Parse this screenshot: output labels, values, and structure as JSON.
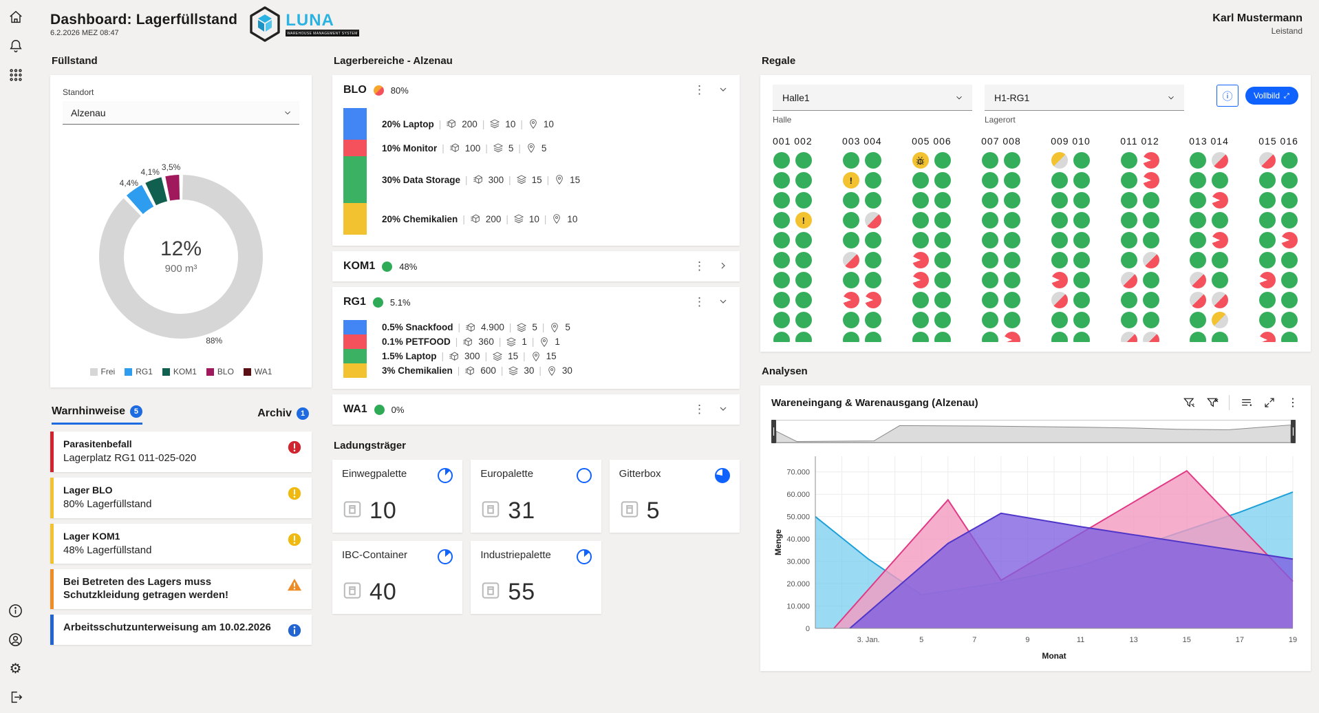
{
  "header": {
    "title": "Dashboard: Lagerfüllstand",
    "datetime": "6.2.2026 MEZ 08:47",
    "logo_text": "LUNA",
    "logo_sub": "WAREHOUSE MANAGEMENT SYSTEM",
    "user_name": "Karl Mustermann",
    "user_role": "Leistand"
  },
  "fuellstand": {
    "title": "Füllstand",
    "standort_label": "Standort",
    "standort_value": "Alzenau",
    "chart_data": {
      "type": "pie",
      "center_value": "12%",
      "center_sub": "900 m³",
      "slices": [
        {
          "label": "Frei",
          "value": 88,
          "display": "88%",
          "color": "#d6d6d6"
        },
        {
          "label": "RG1",
          "value": 4.4,
          "display": "4,4%",
          "color": "#2e9df0"
        },
        {
          "label": "KOM1",
          "value": 4.1,
          "display": "4,1%",
          "color": "#11604f"
        },
        {
          "label": "BLO",
          "value": 3.5,
          "display": "3,5%",
          "color": "#a0195c"
        },
        {
          "label": "WA1",
          "value": 0,
          "display": null,
          "color": "#5a0f14"
        }
      ]
    }
  },
  "warnings": {
    "tab_active_label": "Warnhinweise",
    "tab_active_count": "5",
    "tab_archive_label": "Archiv",
    "tab_archive_count": "1",
    "items": [
      {
        "title": "Parasitenbefall",
        "text": "Lagerplatz RG1 011-025-020",
        "severity": "critical"
      },
      {
        "title": "Lager BLO",
        "text": "80% Lagerfüllstand",
        "severity": "warning"
      },
      {
        "title": "Lager KOM1",
        "text": "48% Lagerfüllstand",
        "severity": "warning"
      },
      {
        "title": "",
        "text": "Bei Betreten des Lagers muss Schutzkleidung getragen werden!",
        "severity": "notice"
      },
      {
        "title": "",
        "text": "Arbeitsschutzunterweisung am 10.02.2026",
        "severity": "info"
      }
    ]
  },
  "lagerbereiche": {
    "title": "Lagerbereiche - Alzenau",
    "sections": [
      {
        "name": "BLO",
        "percent": "80%",
        "status": "split",
        "chevron": "down",
        "expanded": true,
        "rows": [
          {
            "name": "20% Laptop",
            "qty": "200",
            "layers": "10",
            "places": "10",
            "color": "#4285f4",
            "h": 46
          },
          {
            "name": "10% Monitor",
            "qty": "100",
            "layers": "5",
            "places": "5",
            "color": "#f4515c",
            "h": 24
          },
          {
            "name": "30% Data Storage",
            "qty": "300",
            "layers": "15",
            "places": "15",
            "color": "#3bb163",
            "h": 68
          },
          {
            "name": "20% Chemikalien",
            "qty": "200",
            "layers": "10",
            "places": "10",
            "color": "#f2c230",
            "h": 46
          }
        ]
      },
      {
        "name": "KOM1",
        "percent": "48%",
        "status": "green",
        "chevron": "right",
        "expanded": false,
        "rows": []
      },
      {
        "name": "RG1",
        "percent": "5.1%",
        "status": "green",
        "chevron": "down",
        "expanded": true,
        "rows": [
          {
            "name": "0.5% Snackfood",
            "qty": "4.900",
            "layers": "5",
            "places": "5",
            "color": "#4285f4",
            "h": 21
          },
          {
            "name": "0.1% PETFOOD",
            "qty": "360",
            "layers": "1",
            "places": "1",
            "color": "#f4515c",
            "h": 21
          },
          {
            "name": "1.5% Laptop",
            "qty": "300",
            "layers": "15",
            "places": "15",
            "color": "#3bb163",
            "h": 21
          },
          {
            "name": "3% Chemikalien",
            "qty": "600",
            "layers": "30",
            "places": "30",
            "color": "#f2c230",
            "h": 21
          }
        ]
      },
      {
        "name": "WA1",
        "percent": "0%",
        "status": "green",
        "chevron": "down",
        "expanded": false,
        "rows": []
      }
    ]
  },
  "ladungstraeger": {
    "title": "Ladungsträger",
    "cards": [
      {
        "name": "Einwegpalette",
        "count": "10",
        "pie_pct": 12
      },
      {
        "name": "Europalette",
        "count": "31",
        "pie_pct": 0
      },
      {
        "name": "Gitterbox",
        "count": "5",
        "pie_pct": 78
      },
      {
        "name": "IBC-Container",
        "count": "40",
        "pie_pct": 14
      },
      {
        "name": "Industriepalette",
        "count": "55",
        "pie_pct": 14
      }
    ]
  },
  "regale": {
    "title": "Regale",
    "halle_value": "Halle1",
    "halle_label": "Halle",
    "lagerort_value": "H1-RG1",
    "lagerort_label": "Lagerort",
    "fullscreen_label": "Vollbild",
    "groups": [
      {
        "header": "001 002",
        "cols": [
          [
            "G",
            "G",
            "G",
            "G",
            "G",
            "G",
            "G",
            "G",
            "G",
            "G",
            "G"
          ],
          [
            "G",
            "G",
            "G",
            "Y",
            "G",
            "G",
            "G",
            "G",
            "G",
            "G",
            "G"
          ]
        ]
      },
      {
        "header": "003 004",
        "cols": [
          [
            "G",
            "Y",
            "G",
            "G",
            "G",
            "HR",
            "G",
            "RP",
            "G",
            "G",
            "G"
          ],
          [
            "G",
            "G",
            "G",
            "HR",
            "G",
            "G",
            "G",
            "RP",
            "G",
            "G",
            "HR"
          ]
        ]
      },
      {
        "header": "005 006",
        "cols": [
          [
            "B",
            "G",
            "G",
            "G",
            "G",
            "RP",
            "RP",
            "G",
            "G",
            "G",
            "HR"
          ],
          [
            "G",
            "G",
            "G",
            "G",
            "G",
            "G",
            "G",
            "G",
            "G",
            "G",
            "G"
          ]
        ]
      },
      {
        "header": "007 008",
        "cols": [
          [
            "G",
            "G",
            "G",
            "G",
            "G",
            "G",
            "G",
            "G",
            "G",
            "G",
            "G"
          ],
          [
            "G",
            "G",
            "G",
            "G",
            "G",
            "G",
            "G",
            "G",
            "G",
            "RP",
            "G"
          ]
        ]
      },
      {
        "header": "009 010",
        "cols": [
          [
            "YG",
            "G",
            "G",
            "G",
            "G",
            "G",
            "RP",
            "HR",
            "G",
            "G",
            "G"
          ],
          [
            "G",
            "G",
            "G",
            "G",
            "G",
            "G",
            "G",
            "G",
            "G",
            "G",
            "G"
          ]
        ]
      },
      {
        "header": "011 012",
        "cols": [
          [
            "G",
            "G",
            "G",
            "G",
            "G",
            "G",
            "HR",
            "G",
            "G",
            "HR",
            "G"
          ],
          [
            "RP",
            "RP",
            "G",
            "G",
            "G",
            "HR",
            "G",
            "G",
            "G",
            "HR",
            "G"
          ]
        ]
      },
      {
        "header": "013 014",
        "cols": [
          [
            "G",
            "G",
            "G",
            "G",
            "G",
            "G",
            "HR",
            "HR",
            "G",
            "G",
            "G"
          ],
          [
            "HR",
            "G",
            "RP",
            "G",
            "RP",
            "G",
            "G",
            "HR",
            "YG",
            "G",
            "G"
          ]
        ]
      },
      {
        "header": "015 016",
        "cols": [
          [
            "HR",
            "G",
            "G",
            "G",
            "G",
            "G",
            "RP",
            "G",
            "G",
            "RP",
            "G"
          ],
          [
            "G",
            "G",
            "G",
            "G",
            "RP",
            "G",
            "G",
            "G",
            "G",
            "G",
            "G"
          ]
        ]
      }
    ]
  },
  "analysen": {
    "title": "Analysen",
    "chart_title": "Wareneingang & Warenausgang (Alzenau)",
    "chart_data": {
      "type": "area",
      "xlabel": "Monat",
      "ylabel": "Menge",
      "x_range": [
        1,
        19
      ],
      "y_max": 77000,
      "y_ticks": [
        0,
        10000,
        20000,
        30000,
        40000,
        50000,
        60000,
        70000
      ],
      "y_tick_labels": [
        "0",
        "10.000",
        "20.000",
        "30.000",
        "40.000",
        "50.000",
        "60.000",
        "70.000"
      ],
      "x_ticks": [
        {
          "x": 3,
          "label": "3. Jan."
        },
        {
          "x": 5,
          "label": "5"
        },
        {
          "x": 7,
          "label": "7"
        },
        {
          "x": 9,
          "label": "9"
        },
        {
          "x": 11,
          "label": "11"
        },
        {
          "x": 13,
          "label": "13"
        },
        {
          "x": 15,
          "label": "15"
        },
        {
          "x": 17,
          "label": "17"
        },
        {
          "x": 19,
          "label": "19"
        }
      ],
      "series": [
        {
          "name": "blue",
          "line": "#1d9fd8",
          "fill": "#6fccee",
          "opacity": 0.7,
          "points": [
            [
              1,
              50000
            ],
            [
              3,
              31000
            ],
            [
              5,
              15000
            ],
            [
              8,
              20500
            ],
            [
              11,
              28000
            ],
            [
              14,
              40000
            ],
            [
              17,
              52000
            ],
            [
              19,
              61000
            ]
          ]
        },
        {
          "name": "pink",
          "line": "#e03a86",
          "fill": "#f29bc0",
          "opacity": 0.8,
          "points": [
            [
              1.7,
              0
            ],
            [
              6,
              57500
            ],
            [
              8,
              21500
            ],
            [
              15,
              70500
            ],
            [
              19,
              21000
            ]
          ]
        },
        {
          "name": "purple",
          "line": "#4f35c8",
          "fill": "#7e5fe0",
          "opacity": 0.78,
          "points": [
            [
              2.3,
              0
            ],
            [
              6,
              38000
            ],
            [
              8,
              51500
            ],
            [
              11,
              45500
            ],
            [
              19,
              31000
            ]
          ]
        }
      ],
      "overview_shape": [
        [
          0,
          55
        ],
        [
          4,
          5
        ],
        [
          19,
          8
        ],
        [
          24,
          82
        ],
        [
          40,
          80
        ],
        [
          60,
          74
        ],
        [
          70,
          70
        ],
        [
          78,
          64
        ],
        [
          88,
          62
        ],
        [
          100,
          85
        ]
      ]
    }
  }
}
